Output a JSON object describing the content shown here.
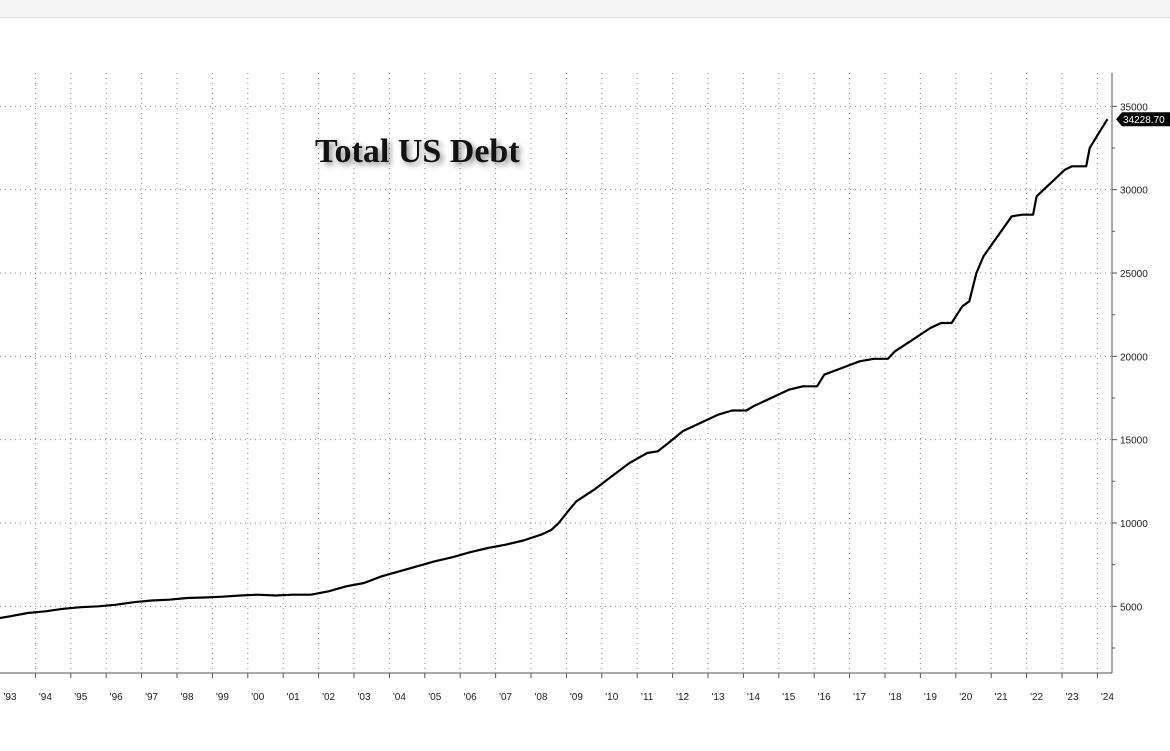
{
  "chart_data": {
    "type": "line",
    "title": "Total US Debt",
    "xlabel": "",
    "ylabel": "",
    "x_tick_labels": [
      "'93",
      "'94",
      "'95",
      "'96",
      "'97",
      "'98",
      "'99",
      "'00",
      "'01",
      "'02",
      "'03",
      "'04",
      "'05",
      "'06",
      "'07",
      "'08",
      "'09",
      "'10",
      "'11",
      "'12",
      "'13",
      "'14",
      "'15",
      "'16",
      "'17",
      "'18",
      "'19",
      "'20",
      "'21",
      "'22",
      "'23",
      "'24"
    ],
    "y_ticks": [
      5000,
      10000,
      15000,
      20000,
      25000,
      30000,
      35000
    ],
    "y_tick_labels": [
      "5000",
      "10000",
      "15000",
      "20000",
      "25000",
      "30000",
      "35000"
    ],
    "ylim": [
      1000,
      37000
    ],
    "xlim": [
      1992.55,
      2024.35
    ],
    "grid": true,
    "y_axis_side": "right",
    "last_value_label": "34228.70",
    "series": [
      {
        "color": "#000000",
        "x": [
          1992.55,
          1993.0,
          1993.5,
          1994.0,
          1994.5,
          1995.0,
          1995.5,
          1996.0,
          1996.5,
          1997.0,
          1997.5,
          1998.0,
          1998.5,
          1999.0,
          1999.5,
          2000.0,
          2000.5,
          2001.0,
          2001.5,
          2002.0,
          2002.5,
          2003.0,
          2003.5,
          2004.0,
          2004.5,
          2005.0,
          2005.5,
          2006.0,
          2006.5,
          2007.0,
          2007.5,
          2008.0,
          2008.3,
          2008.5,
          2008.8,
          2009.0,
          2009.5,
          2010.0,
          2010.5,
          2011.0,
          2011.3,
          2011.6,
          2012.0,
          2012.5,
          2013.0,
          2013.4,
          2013.8,
          2014.0,
          2014.5,
          2015.0,
          2015.4,
          2015.8,
          2016.0,
          2016.5,
          2017.0,
          2017.4,
          2017.8,
          2018.0,
          2018.5,
          2019.0,
          2019.3,
          2019.6,
          2019.9,
          2020.1,
          2020.3,
          2020.5,
          2021.0,
          2021.3,
          2021.6,
          2021.9,
          2022.0,
          2022.5,
          2022.8,
          2023.0,
          2023.4,
          2023.5,
          2023.7,
          2024.0
        ],
        "y": [
          4240,
          4400,
          4600,
          4700,
          4850,
          4950,
          5000,
          5100,
          5250,
          5350,
          5400,
          5500,
          5530,
          5580,
          5650,
          5700,
          5650,
          5700,
          5700,
          5900,
          6200,
          6400,
          6800,
          7100,
          7400,
          7700,
          7950,
          8250,
          8500,
          8700,
          8950,
          9300,
          9600,
          10000,
          10800,
          11300,
          12000,
          12800,
          13600,
          14200,
          14300,
          14800,
          15500,
          16000,
          16500,
          16750,
          16750,
          17000,
          17500,
          18000,
          18200,
          18200,
          18900,
          19300,
          19700,
          19850,
          19850,
          20300,
          21000,
          21700,
          22000,
          22000,
          23000,
          23300,
          25000,
          26000,
          27500,
          28400,
          28500,
          28500,
          29600,
          30600,
          31200,
          31400,
          31400,
          32500,
          33200,
          34228.7
        ]
      }
    ]
  }
}
